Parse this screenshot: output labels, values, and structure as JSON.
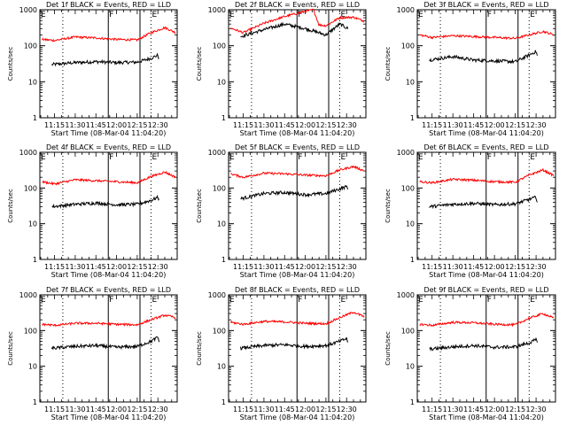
{
  "chart_data": [
    {
      "type": "line",
      "title": "Det 1f BLACK = Events, RED = LLD",
      "xlabel": "Start Time (08-Mar-04 11:04:20)",
      "ylabel": "Counts/sec",
      "yscale": "log",
      "ylim": [
        1,
        1000
      ],
      "xlim": [
        "11:04:20",
        "12:44"
      ],
      "x_ticks": [
        "11:15",
        "11:30",
        "11:45",
        "12:00",
        "12:15",
        "12:30"
      ],
      "y_ticks": [
        "1",
        "10",
        "100",
        "1000"
      ],
      "grid": false,
      "markers": [
        {
          "label": "E",
          "time": "11:21"
        },
        {
          "label": "F",
          "time": "11:54"
        },
        {
          "label": "E",
          "time": "12:25"
        }
      ],
      "vlines_solid": [
        "11:54",
        "12:17"
      ],
      "vlines_dotted": [
        "11:21",
        "12:25"
      ],
      "series": [
        {
          "name": "Events",
          "color": "#000000",
          "x": [
            "11:13",
            "11:13",
            "11:30",
            "11:45",
            "12:00",
            "12:15",
            "12:25",
            "12:30",
            "12:31"
          ],
          "y": [
            6,
            30,
            34,
            36,
            34,
            35,
            45,
            55,
            40
          ]
        },
        {
          "name": "LLD",
          "color": "#ff0000",
          "x": [
            "11:06",
            "11:15",
            "11:30",
            "11:45",
            "12:00",
            "12:15",
            "12:25",
            "12:35",
            "12:43"
          ],
          "y": [
            150,
            140,
            175,
            165,
            150,
            145,
            230,
            320,
            230
          ]
        }
      ]
    },
    {
      "type": "line",
      "title": "Det 2f BLACK = Events, RED = LLD",
      "xlabel": "Start Time (08-Mar-04 11:04:20)",
      "ylabel": "Counts/sec",
      "yscale": "log",
      "ylim": [
        1,
        1000
      ],
      "xlim": [
        "11:04:20",
        "12:44"
      ],
      "x_ticks": [
        "11:15",
        "11:30",
        "11:45",
        "12:00",
        "12:15",
        "12:30"
      ],
      "y_ticks": [
        "1",
        "10",
        "100",
        "1000"
      ],
      "grid": false,
      "markers": [
        {
          "label": "E",
          "time": "11:21"
        },
        {
          "label": "F",
          "time": "11:54"
        },
        {
          "label": "E",
          "time": "12:25"
        }
      ],
      "vlines_solid": [
        "11:54",
        "12:17"
      ],
      "vlines_dotted": [
        "11:21",
        "12:25"
      ],
      "series": [
        {
          "name": "Events",
          "color": "#000000",
          "x": [
            "11:13",
            "11:13",
            "11:30",
            "11:45",
            "12:00",
            "12:15",
            "12:25",
            "12:31"
          ],
          "y": [
            40,
            180,
            280,
            400,
            300,
            200,
            400,
            300
          ]
        },
        {
          "name": "LLD",
          "color": "#ff0000",
          "x": [
            "11:06",
            "11:15",
            "11:30",
            "11:45",
            "12:00",
            "12:06",
            "12:10",
            "12:15",
            "12:25",
            "12:35",
            "12:43"
          ],
          "y": [
            310,
            230,
            420,
            650,
            900,
            1000,
            380,
            360,
            600,
            620,
            480
          ]
        }
      ]
    },
    {
      "type": "line",
      "title": "Det 3f BLACK = Events, RED = LLD",
      "xlabel": "Start Time (08-Mar-04 11:04:20)",
      "ylabel": "Counts/sec",
      "yscale": "log",
      "ylim": [
        1,
        1000
      ],
      "xlim": [
        "11:04:20",
        "12:44"
      ],
      "x_ticks": [
        "11:15",
        "11:30",
        "11:45",
        "12:00",
        "12:15",
        "12:30"
      ],
      "y_ticks": [
        "1",
        "10",
        "100",
        "1000"
      ],
      "grid": false,
      "markers": [
        {
          "label": "E",
          "time": "11:21"
        },
        {
          "label": "F",
          "time": "11:54"
        },
        {
          "label": "E",
          "time": "12:25"
        }
      ],
      "vlines_solid": [
        "11:54",
        "12:17"
      ],
      "vlines_dotted": [
        "11:21",
        "12:25"
      ],
      "series": [
        {
          "name": "Events",
          "color": "#000000",
          "x": [
            "11:13",
            "11:13",
            "11:30",
            "11:45",
            "12:00",
            "12:15",
            "12:25",
            "12:30",
            "12:31"
          ],
          "y": [
            7,
            40,
            50,
            40,
            38,
            36,
            55,
            70,
            50
          ]
        },
        {
          "name": "LLD",
          "color": "#ff0000",
          "x": [
            "11:06",
            "11:15",
            "11:30",
            "11:45",
            "12:00",
            "12:15",
            "12:25",
            "12:35",
            "12:43"
          ],
          "y": [
            200,
            170,
            190,
            180,
            170,
            160,
            200,
            250,
            200
          ]
        }
      ]
    },
    {
      "type": "line",
      "title": "Det 4f BLACK = Events, RED = LLD",
      "xlabel": "Start Time (08-Mar-04 11:04:20)",
      "ylabel": "Counts/sec",
      "yscale": "log",
      "ylim": [
        1,
        1000
      ],
      "xlim": [
        "11:04:20",
        "12:44"
      ],
      "x_ticks": [
        "11:15",
        "11:30",
        "11:45",
        "12:00",
        "12:15",
        "12:30"
      ],
      "y_ticks": [
        "1",
        "10",
        "100",
        "1000"
      ],
      "grid": false,
      "markers": [
        {
          "label": "E",
          "time": "11:21"
        },
        {
          "label": "F",
          "time": "11:54"
        },
        {
          "label": "E",
          "time": "12:25"
        }
      ],
      "vlines_solid": [
        "11:54",
        "12:17"
      ],
      "vlines_dotted": [
        "11:21",
        "12:25"
      ],
      "series": [
        {
          "name": "Events",
          "color": "#000000",
          "x": [
            "11:13",
            "11:13",
            "11:30",
            "11:45",
            "12:00",
            "12:15",
            "12:25",
            "12:30",
            "12:31"
          ],
          "y": [
            5,
            30,
            35,
            38,
            34,
            35,
            45,
            55,
            45
          ]
        },
        {
          "name": "LLD",
          "color": "#ff0000",
          "x": [
            "11:06",
            "11:15",
            "11:30",
            "11:45",
            "12:00",
            "12:15",
            "12:25",
            "12:35",
            "12:43"
          ],
          "y": [
            150,
            130,
            170,
            160,
            150,
            140,
            210,
            280,
            200
          ]
        }
      ]
    },
    {
      "type": "line",
      "title": "Det 5f BLACK = Events, RED = LLD",
      "xlabel": "Start Time (08-Mar-04 11:04:20)",
      "ylabel": "Counts/sec",
      "yscale": "log",
      "ylim": [
        1,
        1000
      ],
      "xlim": [
        "11:04:20",
        "12:44"
      ],
      "x_ticks": [
        "11:15",
        "11:30",
        "11:45",
        "12:00",
        "12:15",
        "12:30"
      ],
      "y_ticks": [
        "1",
        "10",
        "100",
        "1000"
      ],
      "grid": false,
      "markers": [
        {
          "label": "E",
          "time": "11:21"
        },
        {
          "label": "F",
          "time": "11:54"
        },
        {
          "label": "E",
          "time": "12:25"
        }
      ],
      "vlines_solid": [
        "11:54",
        "12:17"
      ],
      "vlines_dotted": [
        "11:21",
        "12:25"
      ],
      "series": [
        {
          "name": "Events",
          "color": "#000000",
          "x": [
            "11:13",
            "11:13",
            "11:30",
            "11:45",
            "12:00",
            "12:15",
            "12:25",
            "12:30",
            "12:31"
          ],
          "y": [
            12,
            50,
            70,
            75,
            65,
            70,
            95,
            110,
            100
          ]
        },
        {
          "name": "LLD",
          "color": "#ff0000",
          "x": [
            "11:06",
            "11:15",
            "11:30",
            "11:45",
            "12:00",
            "12:15",
            "12:25",
            "12:35",
            "12:43"
          ],
          "y": [
            250,
            200,
            260,
            250,
            230,
            220,
            320,
            400,
            300
          ]
        }
      ]
    },
    {
      "type": "line",
      "title": "Det 6f BLACK = Events, RED = LLD",
      "xlabel": "Start Time (08-Mar-04 11:04:20)",
      "ylabel": "Counts/sec",
      "yscale": "log",
      "ylim": [
        1,
        1000
      ],
      "xlim": [
        "11:04:20",
        "12:44"
      ],
      "x_ticks": [
        "11:15",
        "11:30",
        "11:45",
        "12:00",
        "12:15",
        "12:30"
      ],
      "y_ticks": [
        "1",
        "10",
        "100",
        "1000"
      ],
      "grid": false,
      "markers": [
        {
          "label": "E",
          "time": "11:21"
        },
        {
          "label": "F",
          "time": "11:54"
        },
        {
          "label": "E",
          "time": "12:25"
        }
      ],
      "vlines_solid": [
        "11:54",
        "12:17"
      ],
      "vlines_dotted": [
        "11:21",
        "12:25"
      ],
      "series": [
        {
          "name": "Events",
          "color": "#000000",
          "x": [
            "11:13",
            "11:13",
            "11:30",
            "11:45",
            "12:00",
            "12:15",
            "12:25",
            "12:30",
            "12:31"
          ],
          "y": [
            6,
            30,
            35,
            37,
            34,
            36,
            48,
            55,
            40
          ]
        },
        {
          "name": "LLD",
          "color": "#ff0000",
          "x": [
            "11:06",
            "11:15",
            "11:30",
            "11:45",
            "12:00",
            "12:15",
            "12:25",
            "12:35",
            "12:43"
          ],
          "y": [
            150,
            140,
            175,
            165,
            150,
            145,
            230,
            320,
            220
          ]
        }
      ]
    },
    {
      "type": "line",
      "title": "Det 7f BLACK = Events, RED = LLD",
      "xlabel": "Start Time (08-Mar-04 11:04:20)",
      "ylabel": "Counts/sec",
      "yscale": "log",
      "ylim": [
        1,
        1000
      ],
      "xlim": [
        "11:04:20",
        "12:44"
      ],
      "x_ticks": [
        "11:15",
        "11:30",
        "11:45",
        "12:00",
        "12:15",
        "12:30"
      ],
      "y_ticks": [
        "1",
        "10",
        "100",
        "1000"
      ],
      "grid": false,
      "markers": [
        {
          "label": "E",
          "time": "11:21"
        },
        {
          "label": "F",
          "time": "11:54"
        },
        {
          "label": "E",
          "time": "12:25"
        }
      ],
      "vlines_solid": [
        "11:54",
        "12:17"
      ],
      "vlines_dotted": [
        "11:21",
        "12:25"
      ],
      "series": [
        {
          "name": "Events",
          "color": "#000000",
          "x": [
            "11:13",
            "11:13",
            "11:30",
            "11:45",
            "12:00",
            "12:15",
            "12:25",
            "12:30",
            "12:31"
          ],
          "y": [
            8,
            32,
            36,
            38,
            34,
            36,
            50,
            65,
            45
          ]
        },
        {
          "name": "LLD",
          "color": "#ff0000",
          "x": [
            "11:06",
            "11:15",
            "11:30",
            "11:45",
            "12:00",
            "12:15",
            "12:25",
            "12:35",
            "12:43"
          ],
          "y": [
            150,
            140,
            160,
            160,
            150,
            145,
            200,
            270,
            230
          ]
        }
      ]
    },
    {
      "type": "line",
      "title": "Det 8f BLACK = Events, RED = LLD",
      "xlabel": "Start Time (08-Mar-04 11:04:20)",
      "ylabel": "Counts/sec",
      "yscale": "log",
      "ylim": [
        1,
        1000
      ],
      "xlim": [
        "11:04:20",
        "12:44"
      ],
      "x_ticks": [
        "11:15",
        "11:30",
        "11:45",
        "12:00",
        "12:15",
        "12:30"
      ],
      "y_ticks": [
        "1",
        "10",
        "100",
        "1000"
      ],
      "grid": false,
      "markers": [
        {
          "label": "E",
          "time": "11:21"
        },
        {
          "label": "F",
          "time": "11:54"
        },
        {
          "label": "E",
          "time": "12:25"
        }
      ],
      "vlines_solid": [
        "11:54",
        "12:17"
      ],
      "vlines_dotted": [
        "11:21",
        "12:25"
      ],
      "series": [
        {
          "name": "Events",
          "color": "#000000",
          "x": [
            "11:13",
            "11:13",
            "11:30",
            "11:45",
            "12:00",
            "12:15",
            "12:25",
            "12:30",
            "12:31"
          ],
          "y": [
            5,
            32,
            38,
            40,
            36,
            38,
            50,
            60,
            45
          ]
        },
        {
          "name": "LLD",
          "color": "#ff0000",
          "x": [
            "11:06",
            "11:15",
            "11:30",
            "11:45",
            "12:00",
            "12:15",
            "12:25",
            "12:35",
            "12:43"
          ],
          "y": [
            170,
            150,
            180,
            175,
            160,
            155,
            230,
            330,
            240
          ]
        }
      ]
    },
    {
      "type": "line",
      "title": "Det 9f BLACK = Events, RED = LLD",
      "xlabel": "Start Time (08-Mar-04 11:04:20)",
      "ylabel": "Counts/sec",
      "yscale": "log",
      "ylim": [
        1,
        1000
      ],
      "xlim": [
        "11:04:20",
        "12:44"
      ],
      "x_ticks": [
        "11:15",
        "11:30",
        "11:45",
        "12:00",
        "12:15",
        "12:30"
      ],
      "y_ticks": [
        "1",
        "10",
        "100",
        "1000"
      ],
      "grid": false,
      "markers": [
        {
          "label": "E",
          "time": "11:21"
        },
        {
          "label": "F",
          "time": "11:54"
        },
        {
          "label": "E",
          "time": "12:25"
        }
      ],
      "vlines_solid": [
        "11:54",
        "12:17"
      ],
      "vlines_dotted": [
        "11:21",
        "12:25"
      ],
      "series": [
        {
          "name": "Events",
          "color": "#000000",
          "x": [
            "11:13",
            "11:13",
            "11:30",
            "11:45",
            "12:00",
            "12:15",
            "12:25",
            "12:30",
            "12:31"
          ],
          "y": [
            8,
            30,
            35,
            38,
            34,
            35,
            45,
            55,
            45
          ]
        },
        {
          "name": "LLD",
          "color": "#ff0000",
          "x": [
            "11:06",
            "11:15",
            "11:30",
            "11:45",
            "12:00",
            "12:15",
            "12:25",
            "12:35",
            "12:43"
          ],
          "y": [
            150,
            140,
            170,
            165,
            150,
            145,
            220,
            300,
            220
          ]
        }
      ]
    }
  ]
}
